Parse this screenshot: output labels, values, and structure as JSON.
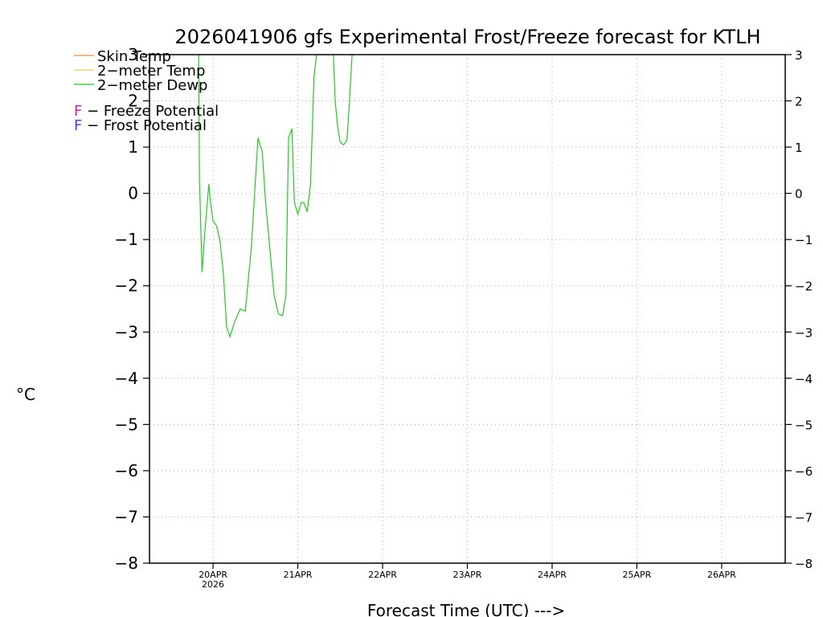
{
  "chart_data": {
    "type": "line",
    "title": "2026041906 gfs Experimental Frost/Freeze forecast for KTLH",
    "xlabel": "Forecast Time (UTC) --->",
    "ylabel": "°C",
    "ylim": [
      -8,
      3
    ],
    "xlim": [
      -0.75,
      6.75
    ],
    "yticks": [
      -8,
      -7,
      -6,
      -5,
      -4,
      -3,
      -2,
      -1,
      0,
      1,
      2,
      3
    ],
    "ytick_labels": [
      "−8",
      "−7",
      "−6",
      "−5",
      "−4",
      "−3",
      "−2",
      "−1",
      "0",
      "1",
      "2",
      "3"
    ],
    "xticks": [
      0,
      1,
      2,
      3,
      4,
      5,
      6
    ],
    "xtick_labels": [
      "20APR",
      "21APR",
      "22APR",
      "23APR",
      "24APR",
      "25APR",
      "26APR"
    ],
    "year_label": "2026",
    "grid": true,
    "legend": [
      {
        "label": "Skin Temp",
        "color": "#f08a3c"
      },
      {
        "label": "2−meter Temp",
        "color": "#e8d060"
      },
      {
        "label": "2−meter Dewp",
        "color": "#22cc22"
      }
    ],
    "potential_legend": [
      {
        "letter": "F",
        "text": " − Freeze Potential",
        "color": "#cc22aa"
      },
      {
        "letter": "F",
        "text": " − Frost Potential",
        "color": "#4444ee"
      }
    ],
    "series": [
      {
        "name": "2−meter Dewp",
        "color": "#22cc22",
        "x": [
          -0.17,
          -0.16,
          -0.13,
          -0.1,
          -0.05,
          -0.03,
          0.0,
          0.04,
          0.08,
          0.12,
          0.16,
          0.2,
          0.25,
          0.32,
          0.38,
          0.45,
          0.53,
          0.58,
          0.62,
          0.67,
          0.72,
          0.77,
          0.82,
          0.86,
          0.89,
          0.93,
          0.96,
          1.0,
          1.04,
          1.07,
          1.11,
          1.15,
          1.19,
          1.22,
          1.27,
          1.32,
          1.34,
          1.42,
          1.44,
          1.47,
          1.5,
          1.54,
          1.58,
          1.61,
          1.64,
          1.67
        ],
        "values": [
          3.0,
          0.3,
          -1.7,
          -0.9,
          0.2,
          -0.2,
          -0.6,
          -0.7,
          -1.0,
          -1.7,
          -2.9,
          -3.1,
          -2.8,
          -2.5,
          -2.55,
          -1.2,
          1.2,
          0.9,
          -0.2,
          -1.2,
          -2.2,
          -2.6,
          -2.65,
          -2.2,
          1.2,
          1.4,
          -0.2,
          -0.45,
          -0.2,
          -0.2,
          -0.4,
          0.2,
          2.5,
          3.0,
          3.0,
          3.0,
          3.0,
          3.0,
          2.0,
          1.45,
          1.1,
          1.05,
          1.15,
          2.0,
          3.0,
          3.0
        ]
      }
    ]
  }
}
